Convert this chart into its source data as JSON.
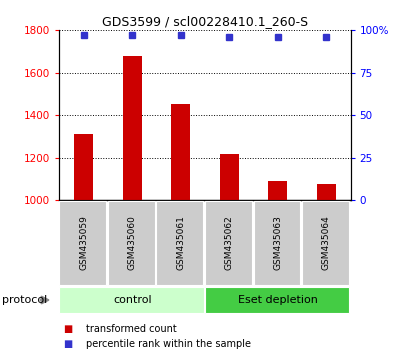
{
  "title": "GDS3599 / scl00228410.1_260-S",
  "samples": [
    "GSM435059",
    "GSM435060",
    "GSM435061",
    "GSM435062",
    "GSM435063",
    "GSM435064"
  ],
  "transformed_counts": [
    1310,
    1680,
    1450,
    1215,
    1090,
    1075
  ],
  "percentile_ranks": [
    97,
    97,
    97,
    96,
    96,
    96
  ],
  "ylim_left": [
    1000,
    1800
  ],
  "ylim_right": [
    0,
    100
  ],
  "yticks_left": [
    1000,
    1200,
    1400,
    1600,
    1800
  ],
  "yticks_right": [
    0,
    25,
    50,
    75,
    100
  ],
  "ytick_labels_right": [
    "0",
    "25",
    "50",
    "75",
    "100%"
  ],
  "bar_color": "#cc0000",
  "dot_color": "#3333cc",
  "bar_width": 0.4,
  "groups": [
    {
      "label": "control",
      "samples": [
        0,
        1,
        2
      ],
      "color": "#ccffcc"
    },
    {
      "label": "Eset depletion",
      "samples": [
        3,
        4,
        5
      ],
      "color": "#44cc44"
    }
  ],
  "protocol_label": "protocol",
  "legend_bar_label": "transformed count",
  "legend_dot_label": "percentile rank within the sample",
  "sample_label_color": "#cccccc",
  "title_fontsize": 9
}
